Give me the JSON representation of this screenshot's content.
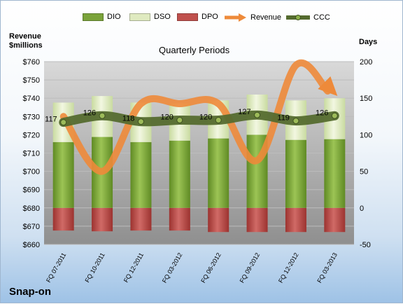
{
  "company": "Snap-on",
  "chart_data": {
    "type": "bar",
    "title": "Quarterly Periods",
    "left_axis_label": [
      "Revenue",
      "$millions"
    ],
    "right_axis_label": "Days",
    "categories": [
      "FQ 07-2011",
      "FQ 10-2011",
      "FQ 12-2011",
      "FQ 03-2012",
      "FQ 06-2012",
      "FQ 09-2012",
      "FQ 12-2012",
      "FQ 03-2013"
    ],
    "left_ylim": [
      660,
      760
    ],
    "left_ticks": [
      "$660",
      "$670",
      "$680",
      "$690",
      "$700",
      "$710",
      "$720",
      "$730",
      "$740",
      "$750",
      "$760"
    ],
    "right_ylim": [
      -50,
      200
    ],
    "right_ticks": [
      "-50",
      "0",
      "50",
      "100",
      "150",
      "200"
    ],
    "grid": true,
    "legend_position": "top",
    "series": [
      {
        "name": "DIO",
        "axis": "right",
        "kind": "stacked-bar",
        "color": "#7aa33a",
        "values": [
          90,
          97,
          90,
          92,
          95,
          100,
          93,
          94
        ]
      },
      {
        "name": "DSO",
        "axis": "right",
        "kind": "stacked-bar",
        "color": "#dfeac0",
        "values": [
          54,
          56,
          54,
          51,
          52,
          55,
          54,
          56
        ]
      },
      {
        "name": "DPO",
        "axis": "right",
        "kind": "negative-bar",
        "color": "#c0504d",
        "values": [
          -31,
          -32,
          -31,
          -31,
          -33,
          -33,
          -33,
          -33
        ]
      },
      {
        "name": "Revenue",
        "axis": "left",
        "kind": "line",
        "color": "#ee8a3a",
        "values": [
          730,
          700,
          737,
          737,
          737,
          706,
          758,
          742
        ]
      },
      {
        "name": "CCC",
        "axis": "right",
        "kind": "line",
        "color": "#556b2f",
        "values": [
          117,
          126,
          118,
          120,
          120,
          127,
          119,
          126
        ],
        "labels": [
          "117",
          "126",
          "118",
          "120",
          "120",
          "127",
          "119",
          "126"
        ]
      }
    ]
  }
}
